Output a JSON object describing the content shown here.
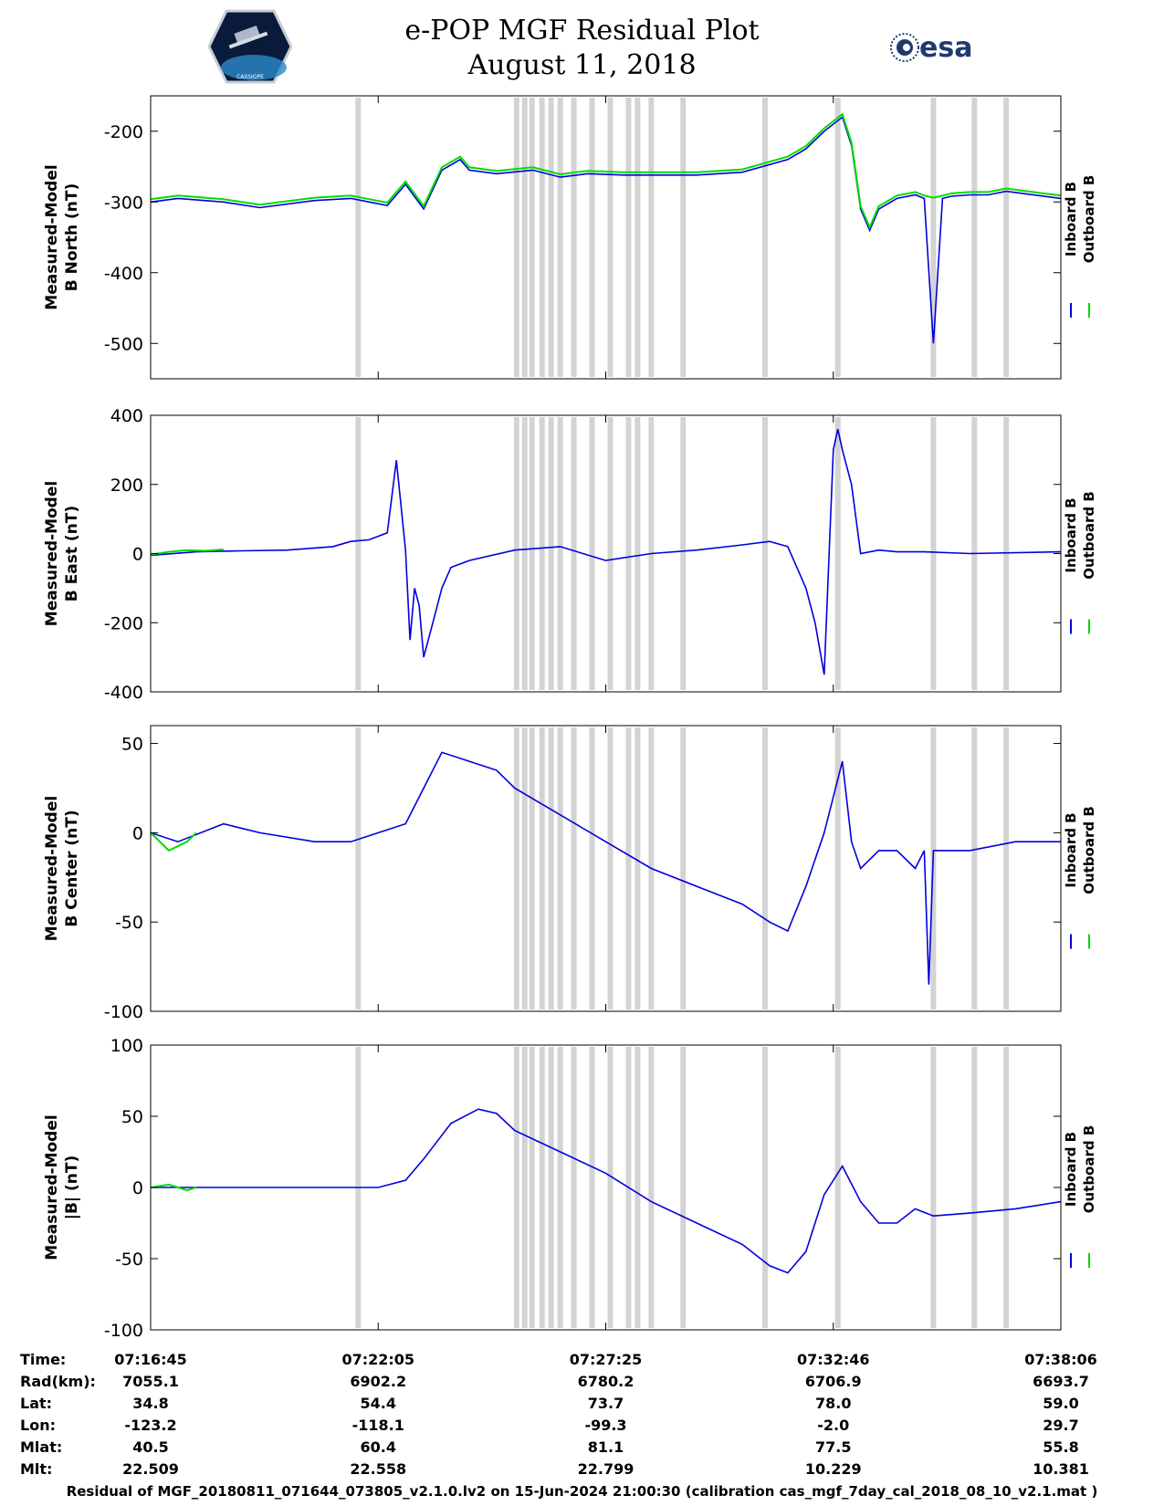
{
  "header": {
    "title_line1": "e-POP MGF Residual Plot",
    "title_line2": "August 11, 2018",
    "left_logo_text": "CASSIOPE",
    "right_logo_text": "esa"
  },
  "colors": {
    "inboard": "#0000dd",
    "outboard": "#00dd00",
    "bar": "#d3d3d3"
  },
  "chart_data": [
    {
      "type": "line",
      "ylabel_line1": "Measured-Model",
      "ylabel_line2": "B North (nT)",
      "ylim": [
        -550,
        -150
      ],
      "yticks": [
        -200,
        -300,
        -400,
        -500
      ],
      "legend": [
        "Inboard B",
        "Outboard B"
      ],
      "series": [
        {
          "name": "Inboard B",
          "x": [
            0,
            0.03,
            0.08,
            0.12,
            0.18,
            0.22,
            0.24,
            0.26,
            0.28,
            0.3,
            0.32,
            0.34,
            0.35,
            0.38,
            0.42,
            0.45,
            0.48,
            0.52,
            0.55,
            0.6,
            0.65,
            0.7,
            0.72,
            0.74,
            0.76,
            0.77,
            0.78,
            0.79,
            0.8,
            0.82,
            0.84,
            0.85,
            0.86,
            0.87,
            0.88,
            0.9,
            0.92,
            0.94,
            1.0
          ],
          "y": [
            -300,
            -295,
            -300,
            -308,
            -298,
            -295,
            -300,
            -305,
            -275,
            -310,
            -255,
            -240,
            -255,
            -260,
            -255,
            -265,
            -260,
            -262,
            -262,
            -262,
            -258,
            -240,
            -225,
            -200,
            -180,
            -220,
            -310,
            -340,
            -310,
            -295,
            -290,
            -295,
            -500,
            -295,
            -292,
            -290,
            -290,
            -285,
            -295
          ]
        },
        {
          "name": "Outboard B",
          "x": [
            0,
            0.03,
            0.08,
            0.12,
            0.18,
            0.22,
            0.24,
            0.26,
            0.28,
            0.3,
            0.32,
            0.34,
            0.35,
            0.38,
            0.42,
            0.45,
            0.48,
            0.52,
            0.55,
            0.6,
            0.65,
            0.7,
            0.72,
            0.74,
            0.76,
            0.77,
            0.78,
            0.79,
            0.8,
            0.82,
            0.84,
            0.85,
            0.86,
            0.87,
            0.88,
            0.9,
            0.92,
            0.94,
            1.0
          ],
          "y": [
            -296,
            -291,
            -296,
            -304,
            -294,
            -291,
            -296,
            -301,
            -271,
            -306,
            -251,
            -236,
            -251,
            -256,
            -251,
            -261,
            -256,
            -258,
            -258,
            -258,
            -254,
            -236,
            -221,
            -196,
            -176,
            -216,
            -306,
            -336,
            -306,
            -291,
            -286,
            -291,
            -294,
            -291,
            -288,
            -286,
            -286,
            -281,
            -291
          ]
        }
      ]
    },
    {
      "type": "line",
      "ylabel_line1": "Measured-Model",
      "ylabel_line2": "B East (nT)",
      "ylim": [
        -400,
        400
      ],
      "yticks": [
        400,
        200,
        0,
        -200,
        -400
      ],
      "legend": [
        "Inboard B",
        "Outboard B"
      ],
      "series": [
        {
          "name": "Inboard B",
          "x": [
            0,
            0.05,
            0.1,
            0.15,
            0.2,
            0.22,
            0.24,
            0.26,
            0.27,
            0.28,
            0.285,
            0.29,
            0.295,
            0.3,
            0.31,
            0.32,
            0.33,
            0.35,
            0.4,
            0.45,
            0.5,
            0.55,
            0.6,
            0.65,
            0.68,
            0.7,
            0.72,
            0.73,
            0.74,
            0.75,
            0.755,
            0.76,
            0.765,
            0.77,
            0.78,
            0.8,
            0.82,
            0.85,
            0.9,
            1.0
          ],
          "y": [
            -5,
            5,
            8,
            10,
            20,
            35,
            40,
            60,
            270,
            10,
            -250,
            -100,
            -150,
            -300,
            -200,
            -100,
            -40,
            -20,
            10,
            20,
            -20,
            0,
            10,
            25,
            35,
            20,
            -100,
            -200,
            -350,
            300,
            360,
            300,
            250,
            200,
            0,
            10,
            5,
            5,
            0,
            5
          ]
        },
        {
          "name": "Outboard B",
          "x": [
            0,
            0.02,
            0.04,
            0.06,
            0.08
          ],
          "y": [
            -3,
            5,
            10,
            8,
            12
          ]
        }
      ]
    },
    {
      "type": "line",
      "ylabel_line1": "Measured-Model",
      "ylabel_line2": "B Center (nT)",
      "ylim": [
        -100,
        60
      ],
      "yticks": [
        50,
        0,
        -50,
        -100
      ],
      "legend": [
        "Inboard B",
        "Outboard B"
      ],
      "series": [
        {
          "name": "Inboard B",
          "x": [
            0,
            0.03,
            0.08,
            0.12,
            0.18,
            0.22,
            0.25,
            0.28,
            0.3,
            0.32,
            0.35,
            0.38,
            0.4,
            0.45,
            0.5,
            0.55,
            0.6,
            0.65,
            0.68,
            0.7,
            0.72,
            0.74,
            0.76,
            0.77,
            0.78,
            0.8,
            0.82,
            0.84,
            0.85,
            0.855,
            0.86,
            0.87,
            0.9,
            0.95,
            1.0
          ],
          "y": [
            0,
            -5,
            5,
            0,
            -5,
            -5,
            0,
            5,
            25,
            45,
            40,
            35,
            25,
            10,
            -5,
            -20,
            -30,
            -40,
            -50,
            -55,
            -30,
            0,
            40,
            -5,
            -20,
            -10,
            -10,
            -20,
            -10,
            -85,
            -10,
            -10,
            -10,
            -5,
            -5
          ]
        },
        {
          "name": "Outboard B",
          "x": [
            0,
            0.02,
            0.04,
            0.05
          ],
          "y": [
            0,
            -10,
            -5,
            0
          ]
        }
      ]
    },
    {
      "type": "line",
      "ylabel_line1": "Measured-Model",
      "ylabel_line2": "|B| (nT)",
      "ylim": [
        -100,
        100
      ],
      "yticks": [
        100,
        50,
        0,
        -50,
        -100
      ],
      "legend": [
        "Inboard B",
        "Outboard B"
      ],
      "series": [
        {
          "name": "Inboard B",
          "x": [
            0,
            0.05,
            0.1,
            0.15,
            0.2,
            0.25,
            0.28,
            0.3,
            0.33,
            0.36,
            0.38,
            0.4,
            0.45,
            0.5,
            0.55,
            0.6,
            0.65,
            0.68,
            0.7,
            0.72,
            0.74,
            0.76,
            0.78,
            0.8,
            0.82,
            0.84,
            0.86,
            0.9,
            0.95,
            1.0
          ],
          "y": [
            0,
            0,
            0,
            0,
            0,
            0,
            5,
            20,
            45,
            55,
            52,
            40,
            25,
            10,
            -10,
            -25,
            -40,
            -55,
            -60,
            -45,
            -5,
            15,
            -10,
            -25,
            -25,
            -15,
            -20,
            -18,
            -15,
            -10
          ]
        },
        {
          "name": "Outboard B",
          "x": [
            0,
            0.02,
            0.04,
            0.05
          ],
          "y": [
            0,
            2,
            -2,
            0
          ]
        }
      ]
    }
  ],
  "table": {
    "labels": [
      "Time:",
      "Rad(km):",
      "Lat:",
      "Lon:",
      "Mlat:",
      "Mlt:"
    ],
    "columns": [
      [
        "07:16:45",
        "7055.1",
        "34.8",
        "-123.2",
        "40.5",
        "22.509"
      ],
      [
        "07:22:05",
        "6902.2",
        "54.4",
        "-118.1",
        "60.4",
        "22.558"
      ],
      [
        "07:27:25",
        "6780.2",
        "73.7",
        "-99.3",
        "81.1",
        "22.799"
      ],
      [
        "07:32:46",
        "6706.9",
        "78.0",
        "-2.0",
        "77.5",
        "10.229"
      ],
      [
        "07:38:06",
        "6693.7",
        "59.0",
        "29.7",
        "55.8",
        "10.381"
      ]
    ]
  },
  "footer": "Residual of MGF_20180811_071644_073805_v2.1.0.lv2 on 15-Jun-2024 21:00:30 (calibration cas_mgf_7day_cal_2018_08_10_v2.1.mat )"
}
